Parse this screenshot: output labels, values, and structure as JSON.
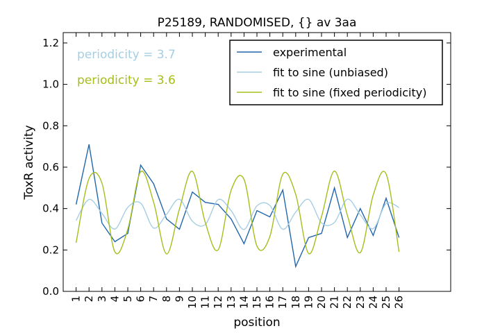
{
  "chart_data": {
    "type": "line",
    "title": "P25189, RANDOMISED, {} av 3aa",
    "xlabel": "position",
    "ylabel": "ToxR activity",
    "xlim": [
      0,
      30
    ],
    "ylim": [
      0.0,
      1.25
    ],
    "x_ticks": [
      1,
      2,
      3,
      4,
      5,
      6,
      7,
      8,
      9,
      10,
      11,
      12,
      13,
      14,
      15,
      16,
      17,
      18,
      19,
      20,
      21,
      22,
      23,
      24,
      25,
      26
    ],
    "x_tick_labels": [
      "1",
      "2",
      "3",
      "4",
      "5",
      "6",
      "7",
      "8",
      "9",
      "10",
      "11",
      "12",
      "13",
      "14",
      "15",
      "16",
      "17",
      "18",
      "19",
      "20",
      "21",
      "22",
      "23",
      "24",
      "25",
      "26"
    ],
    "y_ticks": [
      0.0,
      0.2,
      0.4,
      0.6,
      0.8,
      1.0,
      1.2
    ],
    "y_tick_labels": [
      "0.0",
      "0.2",
      "0.4",
      "0.6",
      "0.8",
      "1.0",
      "1.2"
    ],
    "grid": false,
    "legend_position": "top-right",
    "annotations": [
      {
        "text": "periodicity = 3.7",
        "color": "#a6cee3"
      },
      {
        "text": "periodicity = 3.6",
        "color": "#a6bd1a"
      }
    ],
    "series": [
      {
        "name": "experimental",
        "color": "#2166ac",
        "x": [
          1,
          2,
          3,
          4,
          5,
          6,
          7,
          8,
          9,
          10,
          11,
          12,
          13,
          14,
          15,
          16,
          17,
          18,
          19,
          20,
          21,
          22,
          23,
          24,
          25,
          26
        ],
        "values": [
          0.42,
          0.71,
          0.33,
          0.24,
          0.28,
          0.61,
          0.52,
          0.35,
          0.3,
          0.48,
          0.43,
          0.42,
          0.35,
          0.23,
          0.39,
          0.36,
          0.49,
          0.12,
          0.26,
          0.28,
          0.5,
          0.26,
          0.4,
          0.27,
          0.45,
          0.26
        ]
      },
      {
        "name": "fit to sine (unbiased)",
        "color": "#a6cee3",
        "x": [
          1,
          2,
          3,
          4,
          5,
          6,
          7,
          8,
          9,
          10,
          11,
          12,
          13,
          14,
          15,
          16,
          17,
          18,
          19,
          20,
          21,
          22,
          23,
          24,
          25,
          26
        ],
        "values": [
          0.343,
          0.444,
          0.377,
          0.301,
          0.406,
          0.426,
          0.306,
          0.372,
          0.445,
          0.339,
          0.323,
          0.443,
          0.39,
          0.299,
          0.413,
          0.415,
          0.3,
          0.383,
          0.444,
          0.331,
          0.333,
          0.445,
          0.37,
          0.303,
          0.424,
          0.405
        ]
      },
      {
        "name": "fit to sine (fixed periodicity)",
        "color": "#a6bd1a",
        "x": [
          1,
          2,
          3,
          4,
          5,
          6,
          7,
          8,
          9,
          10,
          11,
          12,
          13,
          14,
          15,
          16,
          17,
          18,
          19,
          20,
          21,
          22,
          23,
          24,
          25,
          26
        ],
        "values": [
          0.235,
          0.545,
          0.523,
          0.191,
          0.3,
          0.578,
          0.431,
          0.181,
          0.398,
          0.58,
          0.333,
          0.201,
          0.488,
          0.541,
          0.219,
          0.265,
          0.566,
          0.469,
          0.183,
          0.362,
          0.581,
          0.368,
          0.187,
          0.465,
          0.567,
          0.191
        ]
      }
    ]
  }
}
